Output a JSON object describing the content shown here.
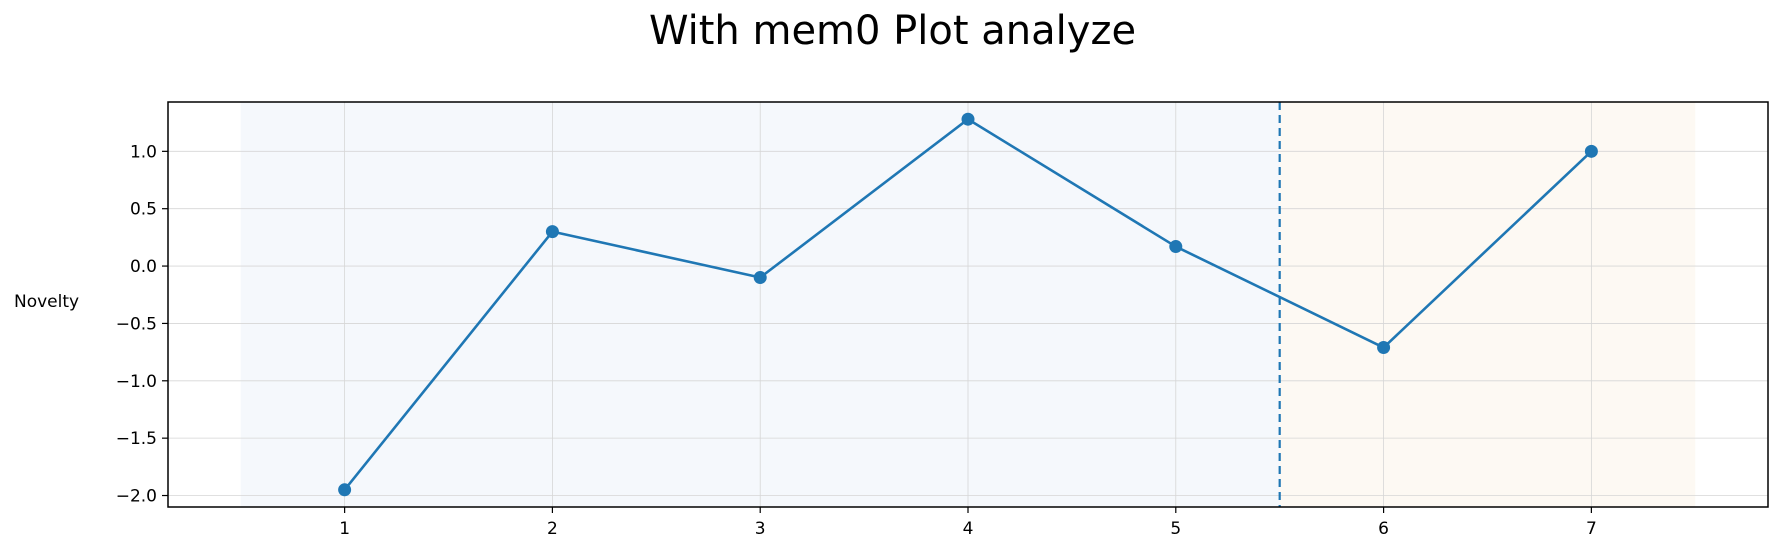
{
  "chart_data": {
    "type": "line",
    "title": "With mem0 Plot analyze",
    "xlabel": "",
    "ylabel": "Novelty",
    "x": [
      1,
      2,
      3,
      4,
      5,
      6,
      7
    ],
    "series": [
      {
        "values": [
          -1.95,
          0.3,
          -0.1,
          1.28,
          0.17,
          -0.71,
          1.0
        ],
        "color": "#1f77b4"
      }
    ],
    "xticks": [
      "1",
      "2",
      "3",
      "4",
      "5",
      "6",
      "7"
    ],
    "yticks": [
      1.0,
      0.5,
      0.0,
      -0.5,
      -1.0,
      -1.5,
      -2.0
    ],
    "ytick_labels": [
      "1.0",
      "0.5",
      "0.0",
      "−0.5",
      "−1.0",
      "−1.5",
      "−2.0"
    ],
    "xlim": [
      0.15,
      7.85
    ],
    "ylim": [
      -2.1,
      1.43
    ],
    "shaded_regions": [
      {
        "x": [
          0.5,
          5.5
        ],
        "color": "#f5f8fc"
      },
      {
        "x": [
          5.5,
          7.5
        ],
        "color": "#fdf9f3"
      }
    ],
    "vline": {
      "x": 5.5,
      "style": "dashed",
      "color": "#1f77b4"
    },
    "grid": true,
    "legend": "none"
  }
}
